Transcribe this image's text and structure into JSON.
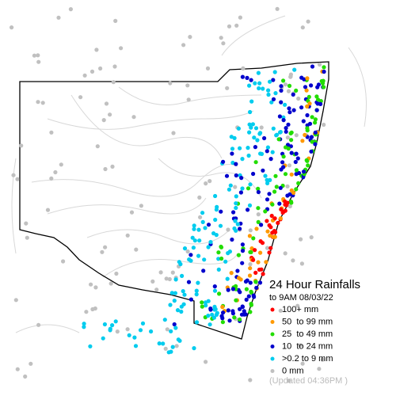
{
  "title": "24 Hour Rainfalls",
  "subtitle": "to 9AM 08/03/22",
  "legend": [
    {
      "label": "100+ mm",
      "color": "#ff0000"
    },
    {
      "label": "50  to 99 mm",
      "color": "#ff9900"
    },
    {
      "label": "25  to 49 mm",
      "color": "#22dd00"
    },
    {
      "label": "10  to 24 mm",
      "color": "#0000cc"
    },
    {
      "label": ">0.2 to 9 mm",
      "color": "#00ccee"
    },
    {
      "label": "0 mm",
      "color": "#c0c0c0"
    }
  ],
  "updated": "(Updated 04:36PM )"
}
